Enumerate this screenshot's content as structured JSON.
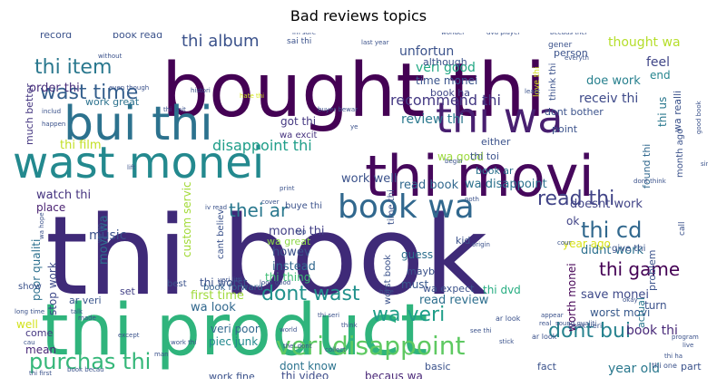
{
  "chart_data": {
    "type": "wordcloud",
    "title": "Bad reviews topics",
    "words": [
      {
        "text": "thi book",
        "color": "#3f2a78"
      },
      {
        "text": "bought thi",
        "color": "#440154"
      },
      {
        "text": "thi product",
        "color": "#2fb47c"
      },
      {
        "text": "thi movi",
        "color": "#46085c"
      },
      {
        "text": "wast monei",
        "color": "#23898e"
      },
      {
        "text": "bui thi",
        "color": "#2c728e"
      },
      {
        "text": "thi wa",
        "color": "#481f70"
      },
      {
        "text": "book wa",
        "color": "#31688e"
      },
      {
        "text": "veri disappoint",
        "color": "#5ec962"
      },
      {
        "text": "purchas thi",
        "color": "#35b779"
      },
      {
        "text": "dont wast",
        "color": "#21918c"
      },
      {
        "text": "thi item",
        "color": "#2a788e"
      },
      {
        "text": "wast time",
        "color": "#355f8d"
      },
      {
        "text": "thi cd",
        "color": "#31688e"
      },
      {
        "text": "thi album",
        "color": "#3b528b"
      },
      {
        "text": "read thi",
        "color": "#414487"
      },
      {
        "text": "thei ar",
        "color": "#2a788e"
      },
      {
        "text": "dont bui",
        "color": "#26828e"
      },
      {
        "text": "wa veri",
        "color": "#1f9e89"
      },
      {
        "text": "thi game",
        "color": "#440154"
      },
      {
        "text": "recommend thi",
        "color": "#443983"
      },
      {
        "text": "disappoint thi",
        "color": "#1f9e89"
      },
      {
        "text": "thought wa",
        "color": "#b5de2b"
      },
      {
        "text": "veri good",
        "color": "#22a884"
      },
      {
        "text": "review thi",
        "color": "#2a788e"
      },
      {
        "text": "receiv thi",
        "color": "#3e4a89"
      },
      {
        "text": "order thi",
        "color": "#472d7b"
      },
      {
        "text": "book thi",
        "color": "#482878"
      },
      {
        "text": "year old",
        "color": "#2a788e"
      },
      {
        "text": "thi film",
        "color": "#c2df23"
      },
      {
        "text": "work well",
        "color": "#3b528b"
      },
      {
        "text": "read book",
        "color": "#31688e"
      },
      {
        "text": "wa disappoint",
        "color": "#2c728e"
      },
      {
        "text": "doesnt work",
        "color": "#414487"
      },
      {
        "text": "didnt work",
        "color": "#2d708e"
      },
      {
        "text": "save monei",
        "color": "#3e4989"
      },
      {
        "text": "first time",
        "color": "#9fda3a"
      },
      {
        "text": "read review",
        "color": "#2e6f8e"
      },
      {
        "text": "thi worst",
        "color": "#3b528b"
      },
      {
        "text": "worth monei",
        "color": "#440154"
      },
      {
        "text": "thi dvd",
        "color": "#26ad81"
      },
      {
        "text": "wa look",
        "color": "#30678d"
      },
      {
        "text": "thi thing",
        "color": "#3dbc74"
      },
      {
        "text": "year ago",
        "color": "#d8e219"
      },
      {
        "text": "worst movi",
        "color": "#38598c"
      },
      {
        "text": "dont know",
        "color": "#2c738e"
      },
      {
        "text": "veri poor",
        "color": "#31688e"
      },
      {
        "text": "piec junk",
        "color": "#23898e"
      },
      {
        "text": "book forward",
        "color": "#34618d"
      },
      {
        "text": "becaus wa",
        "color": "#482576"
      },
      {
        "text": "thi video",
        "color": "#3e4c8a"
      },
      {
        "text": "work fine",
        "color": "#3b528b"
      },
      {
        "text": "book ar",
        "color": "#2c728e"
      },
      {
        "text": "wa good",
        "color": "#9bd93c"
      },
      {
        "text": "got thi",
        "color": "#453882"
      },
      {
        "text": "wa excit",
        "color": "#46337f"
      },
      {
        "text": "time monei",
        "color": "#3a548c"
      },
      {
        "text": "book ha",
        "color": "#404688"
      },
      {
        "text": "doe work",
        "color": "#27808e"
      },
      {
        "text": "feel",
        "color": "#404688"
      },
      {
        "text": "end",
        "color": "#25858e"
      },
      {
        "text": "unfortun",
        "color": "#3b528b"
      },
      {
        "text": "custom servic",
        "color": "#a2da37"
      },
      {
        "text": "movi wa",
        "color": "#2e6e8e"
      },
      {
        "text": "music",
        "color": "#3b528b"
      },
      {
        "text": "monei thi",
        "color": "#424086"
      },
      {
        "text": "howev",
        "color": "#3b528b"
      },
      {
        "text": "instead",
        "color": "#31688e"
      },
      {
        "text": "wa great",
        "color": "#8bd646"
      },
      {
        "text": "poor qualiti",
        "color": "#2d708e"
      },
      {
        "text": "stop work",
        "color": "#3e4a89"
      },
      {
        "text": "watch thi",
        "color": "#463480"
      },
      {
        "text": "place",
        "color": "#481f70"
      },
      {
        "text": "show",
        "color": "#3b528b"
      },
      {
        "text": "much better",
        "color": "#453781"
      },
      {
        "text": "set",
        "color": "#424086"
      },
      {
        "text": "ar veri",
        "color": "#39558c"
      },
      {
        "text": "well",
        "color": "#d2e21b"
      },
      {
        "text": "mean",
        "color": "#482677"
      },
      {
        "text": "come",
        "color": "#453781"
      },
      {
        "text": "record",
        "color": "#3b528b"
      },
      {
        "text": "book read",
        "color": "#3b528b"
      },
      {
        "text": "work great",
        "color": "#2c728e"
      },
      {
        "text": "guess",
        "color": "#2d708e"
      },
      {
        "text": "must",
        "color": "#38588c"
      },
      {
        "text": "mayb",
        "color": "#3b528b"
      },
      {
        "text": "kid",
        "color": "#3b528b"
      },
      {
        "text": "ok",
        "color": "#414487"
      },
      {
        "text": "turn",
        "color": "#3b528b"
      },
      {
        "text": "actual",
        "color": "#2a788e"
      },
      {
        "text": "part",
        "color": "#3b528b"
      },
      {
        "text": "fact",
        "color": "#3b528b"
      },
      {
        "text": "basic",
        "color": "#3b528b"
      },
      {
        "text": "cant believ",
        "color": "#3b528b"
      },
      {
        "text": "buye thi",
        "color": "#3b528b"
      },
      {
        "text": "thi toi",
        "color": "#3b528b"
      },
      {
        "text": "dont bother",
        "color": "#3b528b"
      },
      {
        "text": "point",
        "color": "#3b528b"
      },
      {
        "text": "person",
        "color": "#3b528b"
      },
      {
        "text": "found thi",
        "color": "#31688e"
      },
      {
        "text": "thi us",
        "color": "#2a788e"
      },
      {
        "text": "wa realli",
        "color": "#3b528b"
      },
      {
        "text": "month ago",
        "color": "#3b528b"
      },
      {
        "text": "give thi",
        "color": "#3b528b"
      },
      {
        "text": "problem",
        "color": "#3b528b"
      },
      {
        "text": "either",
        "color": "#3b528b"
      },
      {
        "text": "although",
        "color": "#3b528b"
      },
      {
        "text": "wa expect",
        "color": "#3b528b"
      },
      {
        "text": "worst book",
        "color": "#3b528b"
      },
      {
        "text": "think thi",
        "color": "#3b528b"
      },
      {
        "text": "love thi",
        "color": "#d2e21b"
      },
      {
        "text": "time thi",
        "color": "#3b528b"
      },
      {
        "text": "thi one",
        "color": "#3b528b"
      },
      {
        "text": "book veri",
        "color": "#3b528b"
      },
      {
        "text": "ar look",
        "color": "#3b528b"
      },
      {
        "text": "sai thi",
        "color": "#3b528b"
      },
      {
        "text": "gener",
        "color": "#3b528b"
      },
      {
        "text": "im sure",
        "color": "#3b528b"
      },
      {
        "text": "wonder",
        "color": "#3b528b"
      },
      {
        "text": "dvd player",
        "color": "#3b528b"
      },
      {
        "text": "becaus thei",
        "color": "#3b528b"
      },
      {
        "text": "without",
        "color": "#3b528b"
      },
      {
        "text": "even though",
        "color": "#3b528b"
      },
      {
        "text": "histori",
        "color": "#3b528b"
      },
      {
        "text": "hate thi",
        "color": "#d2e21b"
      },
      {
        "text": "buyer bewar",
        "color": "#3b528b"
      },
      {
        "text": "thi unit",
        "color": "#3b528b"
      },
      {
        "text": "print",
        "color": "#3b528b"
      },
      {
        "text": "iv read",
        "color": "#3b528b"
      },
      {
        "text": "veri littl",
        "color": "#3b528b"
      },
      {
        "text": "look good",
        "color": "#3b528b"
      },
      {
        "text": "best",
        "color": "#3b528b"
      },
      {
        "text": "hate",
        "color": "#3b528b"
      },
      {
        "text": "origin",
        "color": "#3b528b"
      },
      {
        "text": "thi seri",
        "color": "#3b528b"
      },
      {
        "text": "thei dont",
        "color": "#3b528b"
      },
      {
        "text": "collect",
        "color": "#3b528b"
      },
      {
        "text": "stick",
        "color": "#3b528b"
      },
      {
        "text": "see thi",
        "color": "#3b528b"
      },
      {
        "text": "book becau",
        "color": "#3b528b"
      },
      {
        "text": "thi first",
        "color": "#3b528b"
      },
      {
        "text": "work thi",
        "color": "#3b528b"
      },
      {
        "text": "long time",
        "color": "#3b528b"
      },
      {
        "text": "includ",
        "color": "#3b528b"
      },
      {
        "text": "happen",
        "color": "#3b528b"
      },
      {
        "text": "made",
        "color": "#3b528b"
      },
      {
        "text": "except",
        "color": "#3b528b"
      },
      {
        "text": "man",
        "color": "#3b528b"
      },
      {
        "text": "cau",
        "color": "#3b528b"
      },
      {
        "text": "world",
        "color": "#3b528b"
      },
      {
        "text": "think",
        "color": "#3b528b"
      },
      {
        "text": "real",
        "color": "#3b528b"
      },
      {
        "text": "sound qualiti",
        "color": "#3b528b"
      },
      {
        "text": "program",
        "color": "#3b528b"
      },
      {
        "text": "live",
        "color": "#3b528b"
      },
      {
        "text": "appear",
        "color": "#3b528b"
      },
      {
        "text": "least",
        "color": "#3b528b"
      },
      {
        "text": "everyth",
        "color": "#3b528b"
      },
      {
        "text": "last year",
        "color": "#3b528b"
      },
      {
        "text": "noth",
        "color": "#3b528b"
      },
      {
        "text": "begin",
        "color": "#3b528b"
      },
      {
        "text": "sinc",
        "color": "#3b528b"
      },
      {
        "text": "dont think",
        "color": "#3b528b"
      },
      {
        "text": "cover",
        "color": "#3b528b"
      },
      {
        "text": "lift",
        "color": "#3b528b"
      },
      {
        "text": "cour",
        "color": "#3b528b"
      },
      {
        "text": "call",
        "color": "#3b528b"
      },
      {
        "text": "ar look",
        "color": "#3b528b"
      },
      {
        "text": "good book",
        "color": "#3b528b"
      },
      {
        "text": "okay",
        "color": "#3b528b"
      },
      {
        "text": "thi ha",
        "color": "#3b528b"
      },
      {
        "text": "wa go",
        "color": "#3b528b"
      },
      {
        "text": "talk",
        "color": "#3b528b"
      },
      {
        "text": "ye",
        "color": "#3b528b"
      },
      {
        "text": "top",
        "color": "#3b528b"
      },
      {
        "text": "wa hope",
        "color": "#3b528b"
      }
    ]
  }
}
